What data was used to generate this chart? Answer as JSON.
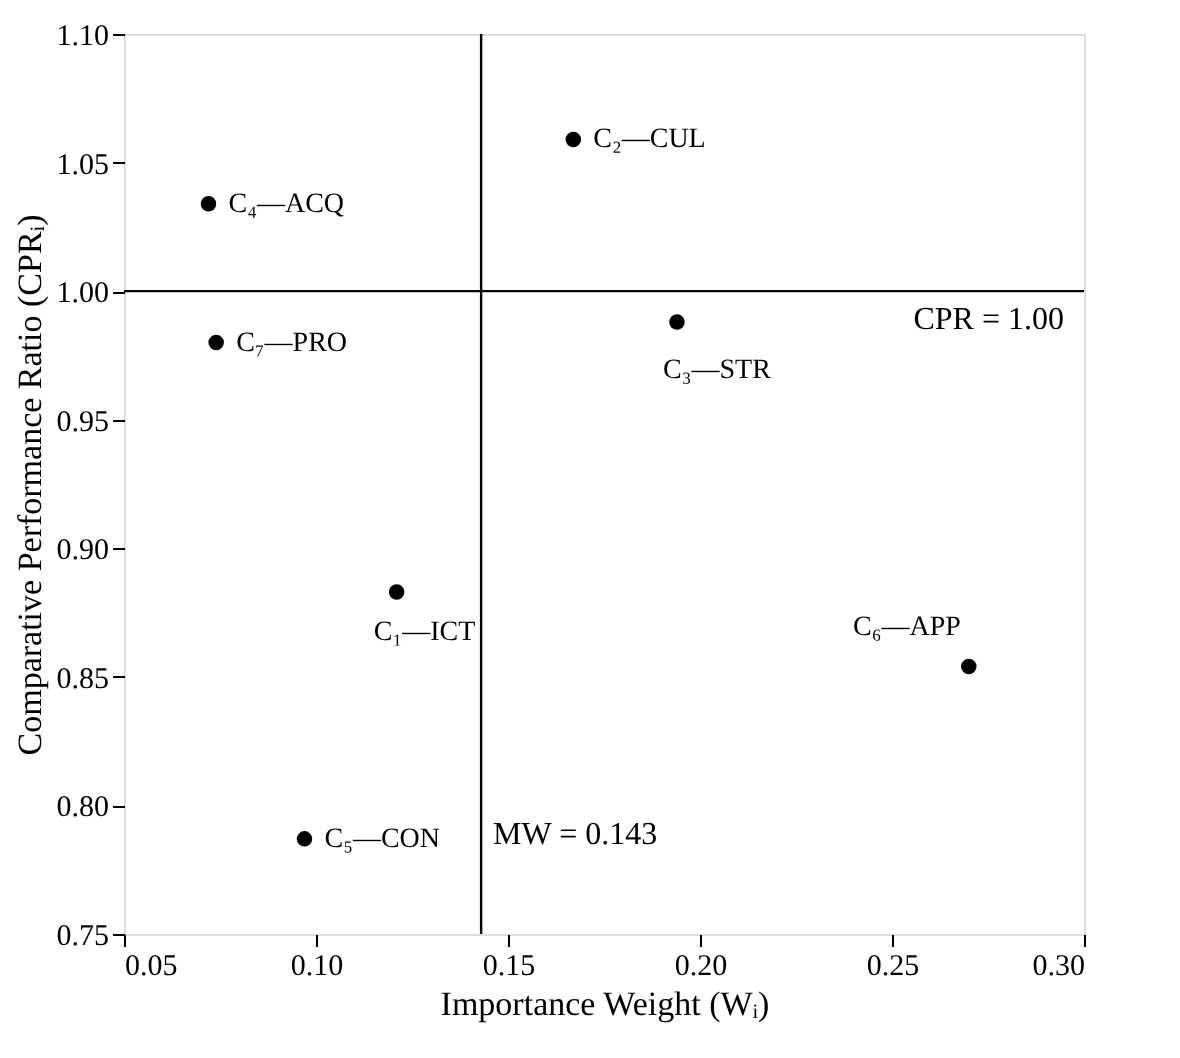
{
  "chart_data": {
    "type": "scatter",
    "xlabel": "Importance Weight (Wᵢ)",
    "ylabel": "Comparative Performance Ratio (CPRᵢ)",
    "x": [
      0.121,
      0.167,
      0.194,
      0.072,
      0.097,
      0.27,
      0.074
    ],
    "values": [
      0.883,
      1.059,
      0.988,
      1.034,
      0.787,
      0.854,
      0.98
    ],
    "value_labels": [
      "C₁—ICT",
      "C₂—CUL",
      "C₃—STR",
      "C₄—ACQ",
      "C₅—CON",
      "C₆—APP",
      "C₇—PRO"
    ],
    "color": "#000000",
    "marker": "circle",
    "xlim": [
      0.05,
      0.3
    ],
    "xticks": [
      {
        "value": 0.05,
        "label": "0.05"
      },
      {
        "value": 0.1,
        "label": "0.10"
      },
      {
        "value": 0.15,
        "label": "0.15"
      },
      {
        "value": 0.2,
        "label": "0.20"
      },
      {
        "value": 0.25,
        "label": "0.25"
      },
      {
        "value": 0.3,
        "label": "0.30"
      }
    ],
    "ylim": [
      0.75,
      1.1
    ],
    "yticks": [
      {
        "value": 0.75,
        "label": "0.75"
      },
      {
        "value": 0.8,
        "label": "0.80"
      },
      {
        "value": 0.85,
        "label": "0.85"
      },
      {
        "value": 0.9,
        "label": "0.90"
      },
      {
        "value": 0.95,
        "label": "0.95"
      },
      {
        "value": 1.0,
        "label": "1.00"
      },
      {
        "value": 1.05,
        "label": "1.05"
      },
      {
        "value": 1.1,
        "label": "1.10"
      }
    ],
    "ref_lines": [
      {
        "axis": "x",
        "value": 0.143,
        "label": "MW = 0.143",
        "color": "#000000"
      },
      {
        "axis": "y",
        "value": 1.0,
        "label": "CPR = 1.00",
        "color": "#000000"
      }
    ],
    "grid": false
  }
}
